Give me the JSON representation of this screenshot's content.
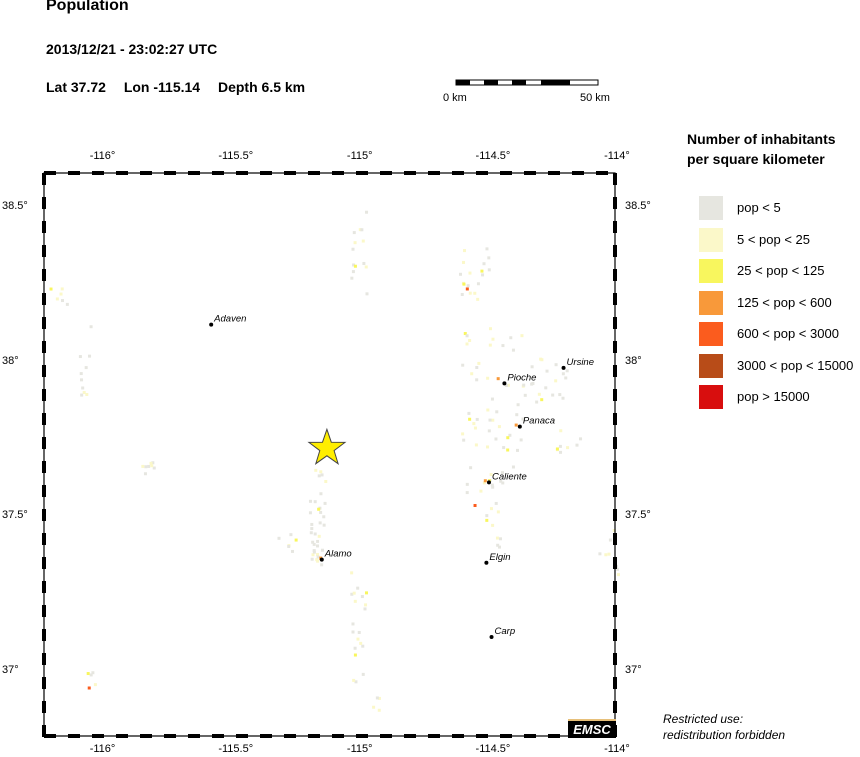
{
  "header": {
    "title": "Population",
    "datetime": "2013/12/21 - 23:02:27 UTC",
    "lat": "Lat 37.72",
    "lon": "Lon -115.14",
    "depth": "Depth  6.5 km"
  },
  "scale_bar": {
    "start_label": "0 km",
    "end_label": "50 km"
  },
  "map": {
    "lon_ticks": [
      "-116°",
      "-115.5°",
      "-115°",
      "-114.5°",
      "-114°"
    ],
    "lat_ticks": [
      "38.5°",
      "38°",
      "37.5°",
      "37°"
    ],
    "epicenter": {
      "lat": 37.72,
      "lon": -115.14,
      "color": "#ffee00"
    },
    "cities": [
      {
        "name": "Adaven",
        "lat": 38.12,
        "lon": -115.59
      },
      {
        "name": "Pioche",
        "lat": 37.93,
        "lon": -114.45
      },
      {
        "name": "Ursine",
        "lat": 37.98,
        "lon": -114.22
      },
      {
        "name": "Panaca",
        "lat": 37.79,
        "lon": -114.39
      },
      {
        "name": "Caliente",
        "lat": 37.61,
        "lon": -114.51
      },
      {
        "name": "Alamo",
        "lat": 37.36,
        "lon": -115.16
      },
      {
        "name": "Elgin",
        "lat": 37.35,
        "lon": -114.52
      },
      {
        "name": "Carp",
        "lat": 37.11,
        "lon": -114.5
      }
    ]
  },
  "legend": {
    "title_line1": "Number of inhabitants",
    "title_line2": "per square kilometer",
    "items": [
      {
        "label": "pop < 5",
        "color": "#e6e6e0"
      },
      {
        "label": "5 < pop < 25",
        "color": "#fbf8c9"
      },
      {
        "label": "25 < pop < 125",
        "color": "#f8f65e"
      },
      {
        "label": "125 < pop < 600",
        "color": "#f8993a"
      },
      {
        "label": "600 < pop < 3000",
        "color": "#fb5c1e"
      },
      {
        "label": "3000 < pop < 15000",
        "color": "#b84c18"
      },
      {
        "label": "pop > 15000",
        "color": "#d80e0e"
      }
    ]
  },
  "footer": {
    "restricted_line1": "Restricted use:",
    "restricted_line2": "redistribution forbidden",
    "logo_text": "EMSC"
  }
}
